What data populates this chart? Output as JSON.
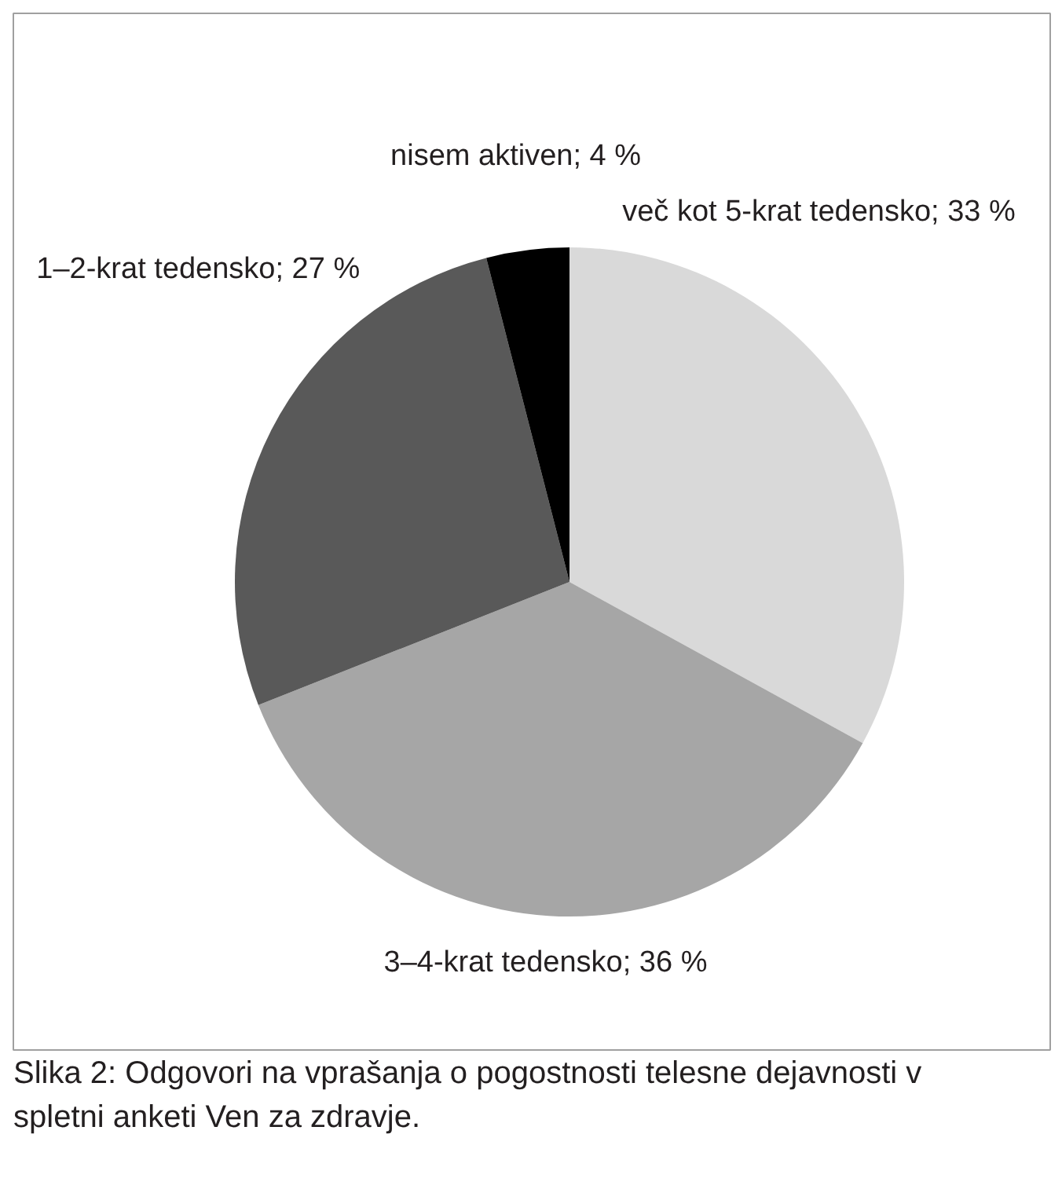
{
  "chart_data": {
    "type": "pie",
    "categories": [
      "več kot 5-krat tedensko",
      "3–4-krat tedensko",
      "1–2-krat tedensko",
      "nisem aktiven"
    ],
    "values": [
      33,
      36,
      27,
      4
    ],
    "colors": [
      "#d9d9d9",
      "#a6a6a6",
      "#595959",
      "#000000"
    ],
    "value_labels": [
      "33 %",
      "36 %",
      "27 %",
      "4 %"
    ],
    "annotations": [
      "Slika 2: Odgovori na vprašanja o pogostnosti telesne dejavnosti v spletni anketi Ven za zdravje."
    ]
  }
}
